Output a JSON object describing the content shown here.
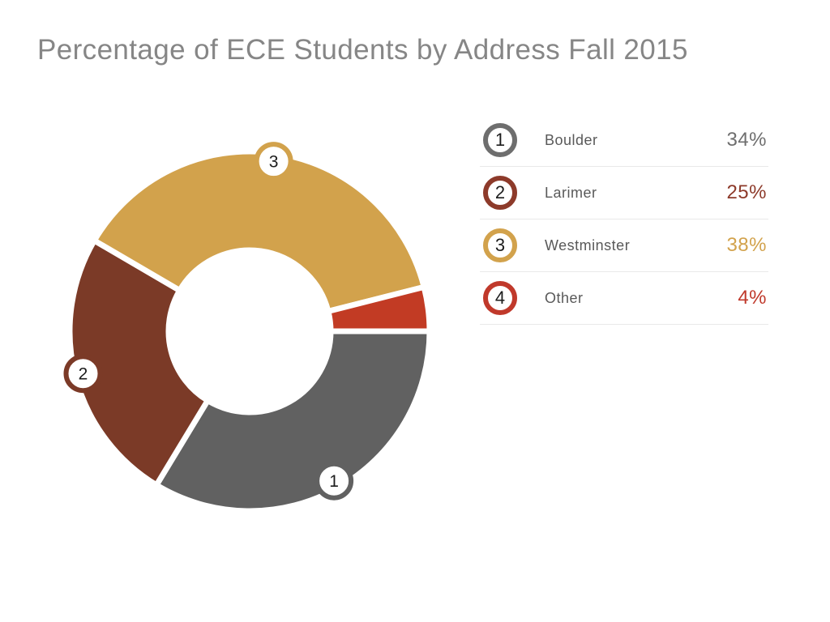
{
  "chart_data": {
    "type": "pie",
    "variant": "donut",
    "title": "Percentage of ECE Students by Address Fall 2015",
    "title_color": "#868686",
    "direction": "clockwise",
    "start_angle_deg": 0,
    "legend_position": "right",
    "slices": [
      {
        "rank": "1",
        "label": "Boulder",
        "value": 34,
        "display": "34%",
        "color": "#616161",
        "accent": "#6e6e6e",
        "badge_on_chart": true
      },
      {
        "rank": "2",
        "label": "Larimer",
        "value": 25,
        "display": "25%",
        "color": "#7b3a27",
        "accent": "#8d3a2a",
        "badge_on_chart": true
      },
      {
        "rank": "3",
        "label": "Westminster",
        "value": 38,
        "display": "38%",
        "color": "#d2a24c",
        "accent": "#d2a24c",
        "badge_on_chart": true
      },
      {
        "rank": "4",
        "label": "Other",
        "value": 4,
        "display": "4%",
        "color": "#c23b24",
        "accent": "#c0392b",
        "badge_on_chart": false
      }
    ]
  }
}
